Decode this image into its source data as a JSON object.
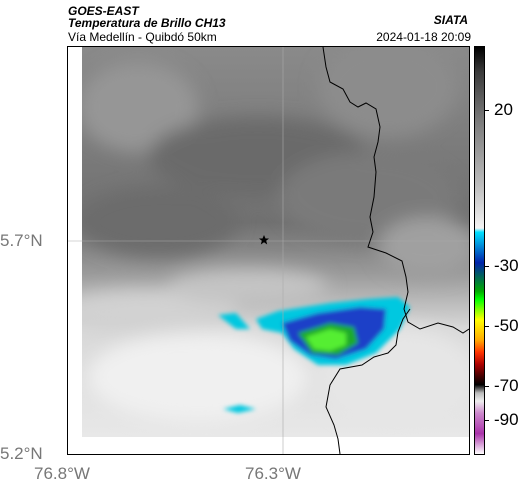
{
  "header": {
    "satellite": "GOES-EAST",
    "product": "Temperatura de Brillo CH13",
    "institution": "SIATA",
    "region": "Vía Medellín - Quibdó 50km",
    "timestamp": "2024-01-18 20:09"
  },
  "map": {
    "lat_labels": [
      "5.7°N",
      "5.2°N"
    ],
    "lon_labels": [
      "76.8°W",
      "76.3°W"
    ],
    "marker_icon": "star-icon"
  },
  "colorbar": {
    "labels": [
      "20",
      "-30",
      "-50",
      "-70",
      "-90"
    ]
  },
  "colors": {
    "cold_core": "#22dd22",
    "cold_ring": "#1a40c8",
    "edge": "#00c8e0",
    "warm_cloud": "#ececec",
    "clear_sky": "#7f7f7f"
  }
}
